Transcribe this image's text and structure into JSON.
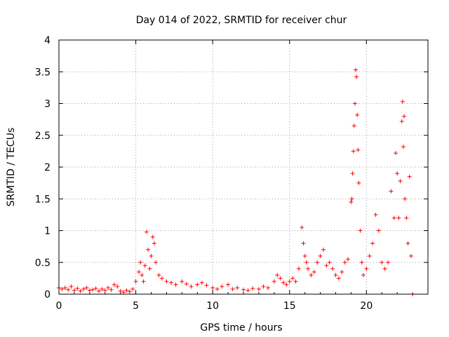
{
  "chart_data": {
    "type": "scatter",
    "title": "Day 014 of 2022, SRMTID for receiver chur",
    "xlabel": "GPS time / hours",
    "ylabel": "SRMTID / TECUs",
    "xlim": [
      0,
      24
    ],
    "ylim": [
      0,
      4
    ],
    "xticks": [
      0,
      5,
      10,
      15,
      20
    ],
    "yticks": [
      0,
      0.5,
      1,
      1.5,
      2,
      2.5,
      3,
      3.5,
      4
    ],
    "grid": true,
    "marker": "+",
    "color": "#ff0000",
    "series": [
      {
        "name": "SRMTID",
        "points": [
          [
            0.0,
            0.1
          ],
          [
            0.2,
            0.08
          ],
          [
            0.4,
            0.1
          ],
          [
            0.6,
            0.07
          ],
          [
            0.8,
            0.12
          ],
          [
            1.0,
            0.06
          ],
          [
            1.2,
            0.09
          ],
          [
            1.4,
            0.05
          ],
          [
            1.6,
            0.08
          ],
          [
            1.8,
            0.1
          ],
          [
            2.0,
            0.06
          ],
          [
            2.2,
            0.07
          ],
          [
            2.4,
            0.09
          ],
          [
            2.6,
            0.05
          ],
          [
            2.8,
            0.08
          ],
          [
            3.0,
            0.06
          ],
          [
            3.2,
            0.1
          ],
          [
            3.4,
            0.07
          ],
          [
            3.6,
            0.15
          ],
          [
            3.8,
            0.12
          ],
          [
            4.0,
            0.05
          ],
          [
            4.2,
            0.03
          ],
          [
            4.4,
            0.06
          ],
          [
            4.6,
            0.04
          ],
          [
            4.8,
            0.08
          ],
          [
            5.0,
            0.2
          ],
          [
            5.2,
            0.35
          ],
          [
            5.3,
            0.5
          ],
          [
            5.4,
            0.3
          ],
          [
            5.5,
            0.2
          ],
          [
            5.6,
            0.45
          ],
          [
            5.7,
            0.98
          ],
          [
            5.8,
            0.7
          ],
          [
            5.9,
            0.4
          ],
          [
            6.0,
            0.6
          ],
          [
            6.1,
            0.9
          ],
          [
            6.2,
            0.8
          ],
          [
            6.3,
            0.5
          ],
          [
            6.5,
            0.3
          ],
          [
            6.7,
            0.25
          ],
          [
            7.0,
            0.2
          ],
          [
            7.3,
            0.18
          ],
          [
            7.6,
            0.15
          ],
          [
            8.0,
            0.2
          ],
          [
            8.3,
            0.16
          ],
          [
            8.6,
            0.12
          ],
          [
            9.0,
            0.15
          ],
          [
            9.3,
            0.18
          ],
          [
            9.6,
            0.14
          ],
          [
            10.0,
            0.1
          ],
          [
            10.3,
            0.08
          ],
          [
            10.6,
            0.12
          ],
          [
            11.0,
            0.15
          ],
          [
            11.3,
            0.08
          ],
          [
            11.6,
            0.1
          ],
          [
            12.0,
            0.07
          ],
          [
            12.3,
            0.06
          ],
          [
            12.6,
            0.09
          ],
          [
            13.0,
            0.08
          ],
          [
            13.3,
            0.12
          ],
          [
            13.6,
            0.1
          ],
          [
            14.0,
            0.2
          ],
          [
            14.2,
            0.3
          ],
          [
            14.4,
            0.25
          ],
          [
            14.6,
            0.18
          ],
          [
            14.8,
            0.15
          ],
          [
            15.0,
            0.2
          ],
          [
            15.2,
            0.25
          ],
          [
            15.4,
            0.2
          ],
          [
            15.6,
            0.4
          ],
          [
            15.8,
            1.05
          ],
          [
            15.9,
            0.8
          ],
          [
            16.0,
            0.6
          ],
          [
            16.1,
            0.5
          ],
          [
            16.2,
            0.4
          ],
          [
            16.4,
            0.3
          ],
          [
            16.6,
            0.35
          ],
          [
            16.8,
            0.5
          ],
          [
            17.0,
            0.6
          ],
          [
            17.2,
            0.7
          ],
          [
            17.4,
            0.45
          ],
          [
            17.6,
            0.5
          ],
          [
            17.8,
            0.4
          ],
          [
            18.0,
            0.3
          ],
          [
            18.2,
            0.25
          ],
          [
            18.4,
            0.35
          ],
          [
            18.6,
            0.5
          ],
          [
            18.8,
            0.55
          ],
          [
            19.0,
            1.45
          ],
          [
            19.05,
            1.5
          ],
          [
            19.1,
            1.9
          ],
          [
            19.15,
            2.25
          ],
          [
            19.2,
            2.65
          ],
          [
            19.25,
            3.0
          ],
          [
            19.3,
            3.53
          ],
          [
            19.35,
            3.42
          ],
          [
            19.4,
            2.82
          ],
          [
            19.45,
            2.27
          ],
          [
            19.5,
            1.75
          ],
          [
            19.6,
            1.0
          ],
          [
            19.7,
            0.5
          ],
          [
            19.8,
            0.3
          ],
          [
            20.0,
            0.4
          ],
          [
            20.2,
            0.6
          ],
          [
            20.4,
            0.8
          ],
          [
            20.6,
            1.25
          ],
          [
            20.8,
            1.0
          ],
          [
            21.0,
            0.5
          ],
          [
            21.2,
            0.4
          ],
          [
            21.4,
            0.5
          ],
          [
            21.6,
            1.62
          ],
          [
            21.8,
            1.2
          ],
          [
            21.9,
            2.22
          ],
          [
            22.0,
            1.9
          ],
          [
            22.1,
            1.2
          ],
          [
            22.2,
            1.78
          ],
          [
            22.3,
            2.72
          ],
          [
            22.35,
            3.03
          ],
          [
            22.4,
            2.32
          ],
          [
            22.45,
            2.8
          ],
          [
            22.5,
            1.5
          ],
          [
            22.6,
            1.2
          ],
          [
            22.7,
            0.8
          ],
          [
            22.8,
            1.85
          ],
          [
            22.9,
            0.6
          ],
          [
            23.0,
            0.0
          ]
        ]
      }
    ]
  }
}
